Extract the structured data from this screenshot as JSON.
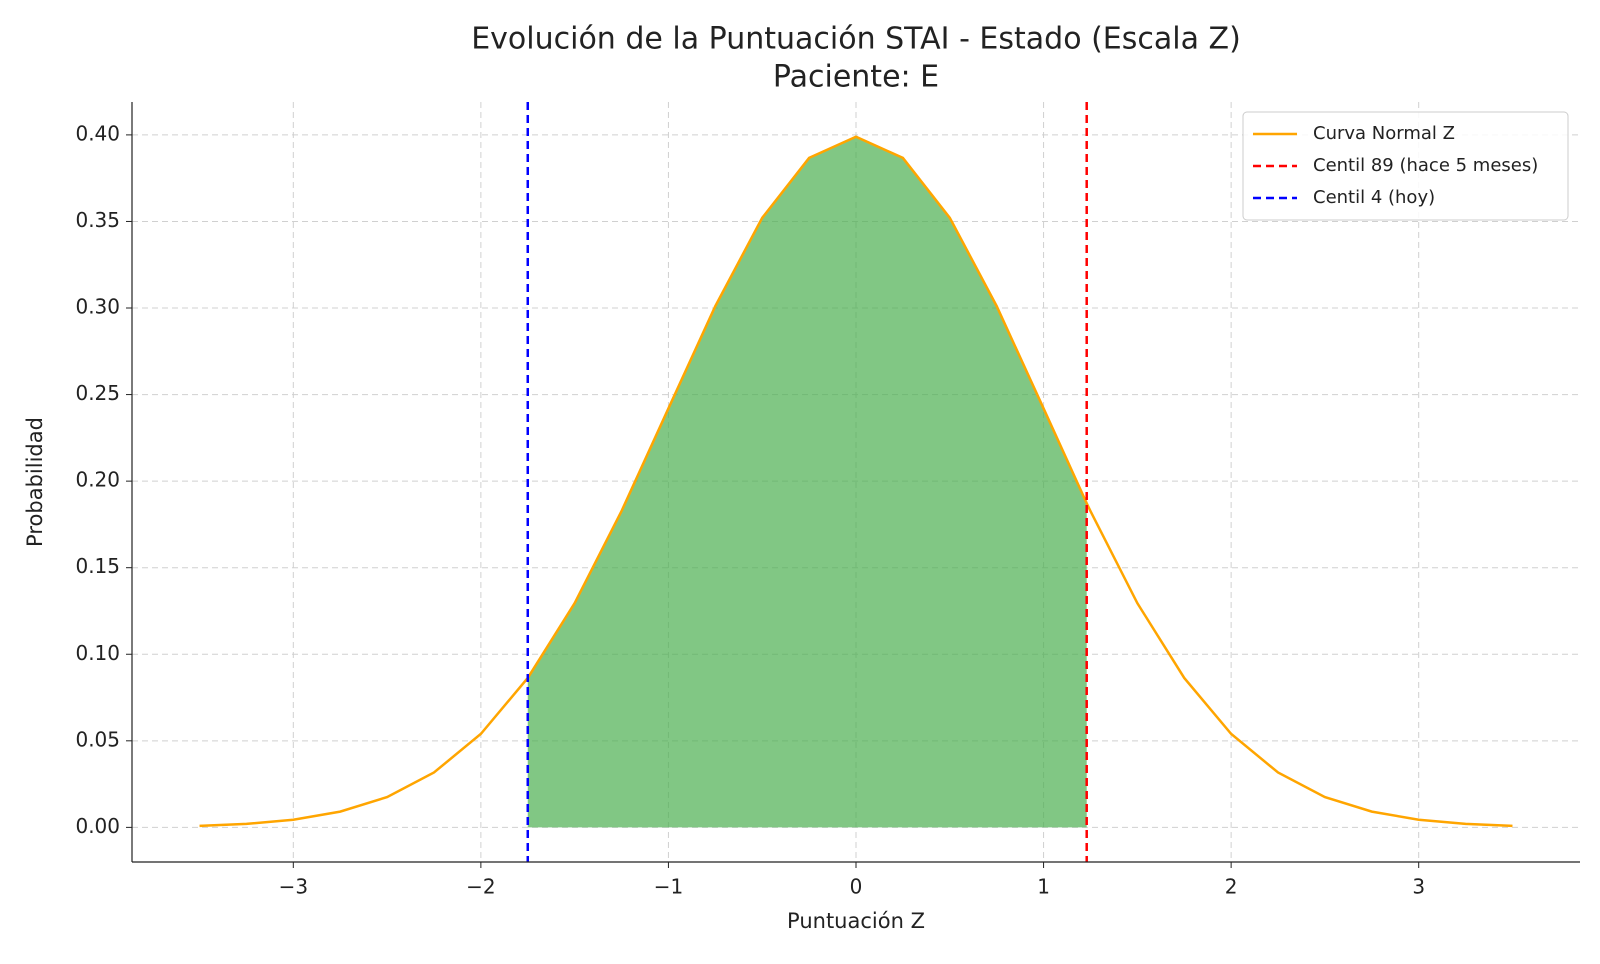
{
  "chart_data": {
    "type": "line",
    "title": [
      "Evolución de la Puntuación STAI - Estado (Escala Z)",
      "Paciente: E"
    ],
    "x_label": "Puntuación Z",
    "y_label": "Probabilidad",
    "series": [
      {
        "name": "Curva Normal Z",
        "color": "#ffa500",
        "x": [
          -3.5,
          -3.25,
          -3.0,
          -2.75,
          -2.5,
          -2.25,
          -2.0,
          -1.75,
          -1.5,
          -1.25,
          -1.0,
          -0.75,
          -0.5,
          -0.25,
          0,
          0.25,
          0.5,
          0.75,
          1.0,
          1.23,
          1.25,
          1.5,
          1.75,
          2.0,
          2.25,
          2.5,
          2.75,
          3.0,
          3.25,
          3.5
        ],
        "values": [
          0.0009,
          0.002,
          0.0044,
          0.0091,
          0.0175,
          0.0317,
          0.054,
          0.0863,
          0.1295,
          0.1827,
          0.242,
          0.3011,
          0.3521,
          0.3867,
          0.3989,
          0.3867,
          0.3521,
          0.3011,
          0.242,
          0.1872,
          0.1827,
          0.1295,
          0.0863,
          0.054,
          0.0317,
          0.0175,
          0.0091,
          0.0044,
          0.002,
          0.0009
        ]
      }
    ],
    "vlines": [
      {
        "name": "Centil 89 (hace 5 meses)",
        "color": "#ff0000",
        "x": 1.23
      },
      {
        "name": "Centil 4 (hoy)",
        "color": "#0000ff",
        "x": -1.75
      }
    ],
    "shade": {
      "color": "#4caf50",
      "opacity": 0.7
    },
    "xlim": [
      -3.86,
      3.86
    ],
    "ylim": [
      -0.02,
      0.419
    ],
    "xticks": [
      {
        "value": -3,
        "label": "−3"
      },
      {
        "value": -2,
        "label": "−2"
      },
      {
        "value": -1,
        "label": "−1"
      },
      0,
      1,
      2,
      3
    ],
    "yticks": [
      {
        "value": 0,
        "label": "0.00"
      },
      {
        "value": 0.05,
        "label": "0.05"
      },
      {
        "value": 0.1,
        "label": "0.10"
      },
      {
        "value": 0.15,
        "label": "0.15"
      },
      {
        "value": 0.2,
        "label": "0.20"
      },
      {
        "value": 0.25,
        "label": "0.25"
      },
      {
        "value": 0.3,
        "label": "0.30"
      },
      {
        "value": 0.35,
        "label": "0.35"
      },
      {
        "value": 0.4,
        "label": "0.40"
      }
    ],
    "grid": true,
    "legend": "upper right"
  }
}
